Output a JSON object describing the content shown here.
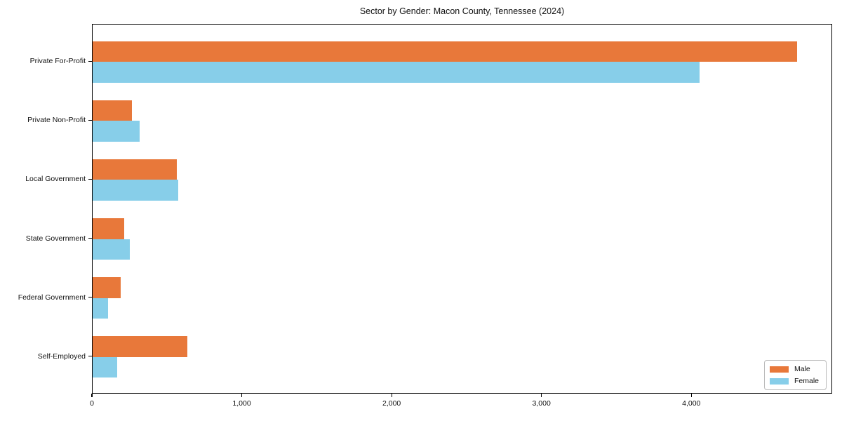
{
  "chart_data": {
    "type": "bar",
    "orientation": "horizontal",
    "title": "Sector by Gender: Macon County, Tennessee (2024)",
    "categories": [
      "Private For-Profit",
      "Private Non-Profit",
      "Local Government",
      "State Government",
      "Federal Government",
      "Self-Employed"
    ],
    "series": [
      {
        "name": "Male",
        "color": "#e8783a",
        "values": [
          4700,
          260,
          560,
          210,
          185,
          630
        ]
      },
      {
        "name": "Female",
        "color": "#87cee9",
        "values": [
          4050,
          315,
          570,
          250,
          105,
          165
        ]
      }
    ],
    "xlabel": "",
    "ylabel": "",
    "xlim": [
      0,
      4940
    ],
    "xticks": [
      0,
      1000,
      2000,
      3000,
      4000
    ],
    "xtick_labels": [
      "0",
      "1,000",
      "2,000",
      "3,000",
      "4,000"
    ],
    "grid": false,
    "legend_position": "lower right"
  },
  "legend": {
    "items": [
      {
        "label": "Male",
        "color": "#e8783a"
      },
      {
        "label": "Female",
        "color": "#87cee9"
      }
    ]
  }
}
